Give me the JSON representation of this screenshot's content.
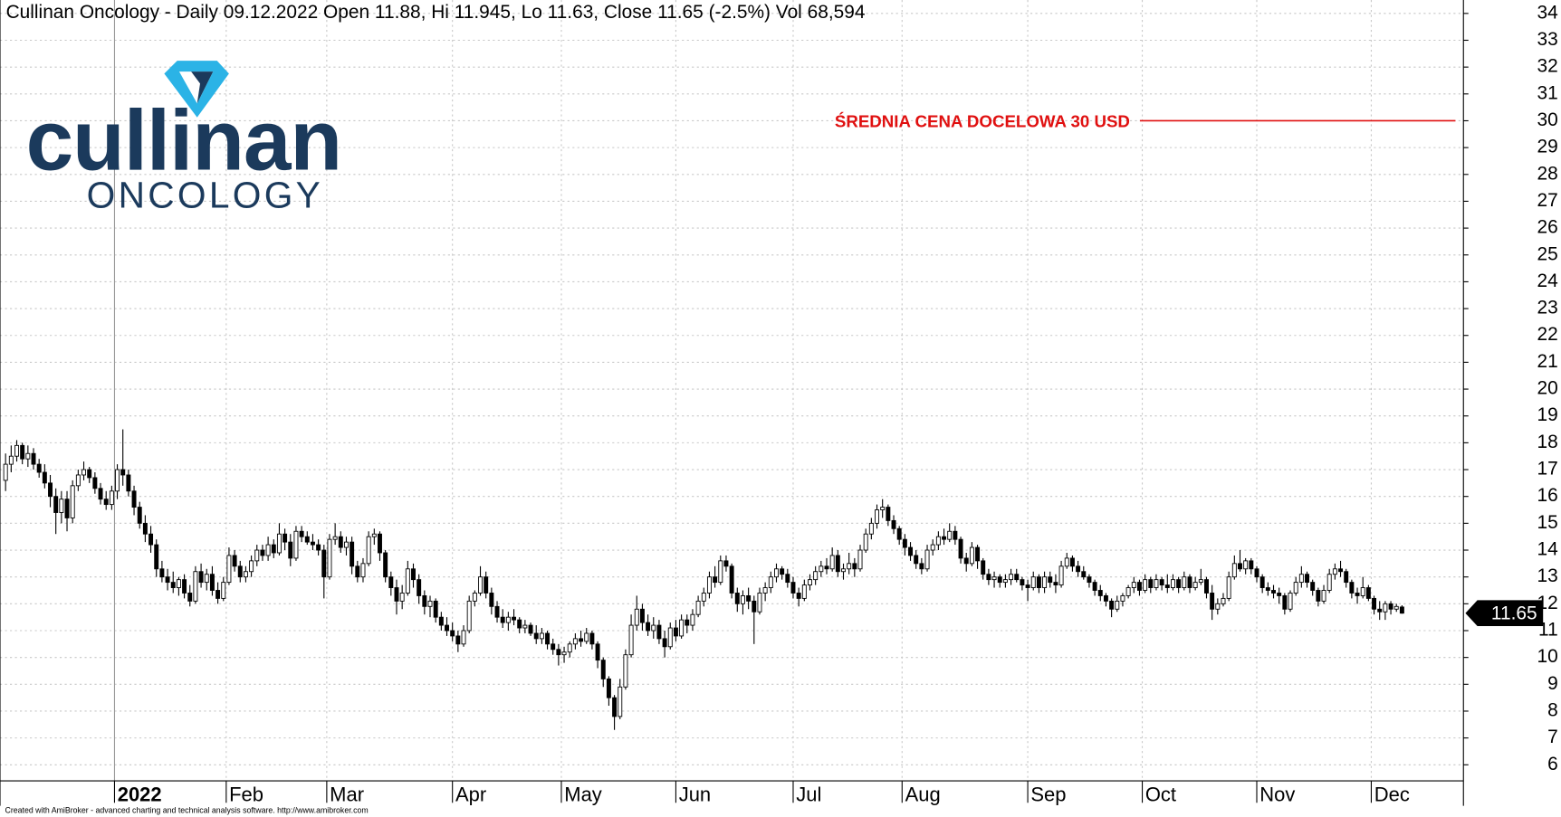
{
  "chart_data": {
    "type": "candlestick",
    "title": "Cullinan Oncology - Daily 09.12.2022 Open 11.88, Hi 11.945, Lo 11.63, Close 11.65 (-2.5%) Vol 68,594",
    "logo": {
      "name": "cullinan",
      "tagline": "ONCOLOGY"
    },
    "footer": "Created with AmiBroker - advanced charting and technical analysis software. http://www.amibroker.com",
    "target_line": {
      "value": 30,
      "label": "ŚREDNIA CENA DOCELOWA 30 USD",
      "color": "#e01010"
    },
    "last_price": 11.65,
    "ylim": [
      5.4,
      34.5
    ],
    "yticks": [
      6,
      7,
      8,
      9,
      10,
      11,
      12,
      13,
      14,
      15,
      16,
      17,
      18,
      19,
      20,
      21,
      22,
      23,
      24,
      25,
      26,
      27,
      28,
      29,
      30,
      31,
      32,
      33,
      34
    ],
    "xlim": [
      -1,
      261
    ],
    "xticks": [
      {
        "value": 19.5,
        "label": "2022"
      },
      {
        "value": 39.5,
        "label": "Feb"
      },
      {
        "value": 57.5,
        "label": "Mar"
      },
      {
        "value": 80,
        "label": "Apr"
      },
      {
        "value": 99.5,
        "label": "May"
      },
      {
        "value": 120,
        "label": "Jun"
      },
      {
        "value": 141,
        "label": "Jul"
      },
      {
        "value": 160.5,
        "label": "Aug"
      },
      {
        "value": 183,
        "label": "Sep"
      },
      {
        "value": 203.5,
        "label": "Oct"
      },
      {
        "value": 224,
        "label": "Nov"
      },
      {
        "value": 244.5,
        "label": "Dec"
      }
    ],
    "grid": true,
    "up_color": "#ffffff",
    "down_color": "#000000",
    "ohlc": [
      [
        16.6,
        17.6,
        16.2,
        17.2
      ],
      [
        17.2,
        17.9,
        16.9,
        17.5
      ],
      [
        17.5,
        18.1,
        17.3,
        17.9
      ],
      [
        17.9,
        18.0,
        17.2,
        17.4
      ],
      [
        17.4,
        17.9,
        17.1,
        17.6
      ],
      [
        17.6,
        17.8,
        17.0,
        17.2
      ],
      [
        17.2,
        17.4,
        16.7,
        16.9
      ],
      [
        16.9,
        17.2,
        16.3,
        16.5
      ],
      [
        16.5,
        16.8,
        15.6,
        16.0
      ],
      [
        16.0,
        16.3,
        14.6,
        15.4
      ],
      [
        15.4,
        16.2,
        15.0,
        15.9
      ],
      [
        15.9,
        16.2,
        14.7,
        15.2
      ],
      [
        15.2,
        16.6,
        15.0,
        16.4
      ],
      [
        16.4,
        17.0,
        16.2,
        16.8
      ],
      [
        16.8,
        17.3,
        16.6,
        17.0
      ],
      [
        17.0,
        17.1,
        16.5,
        16.7
      ],
      [
        16.7,
        16.9,
        16.1,
        16.3
      ],
      [
        16.3,
        16.5,
        15.7,
        15.9
      ],
      [
        15.9,
        16.2,
        15.5,
        15.7
      ],
      [
        15.7,
        16.4,
        15.5,
        16.2
      ],
      [
        16.2,
        17.2,
        15.9,
        17.0
      ],
      [
        17.0,
        18.5,
        16.4,
        16.8
      ],
      [
        16.8,
        17.0,
        16.0,
        16.2
      ],
      [
        16.2,
        16.4,
        15.3,
        15.6
      ],
      [
        15.6,
        15.8,
        14.8,
        15.0
      ],
      [
        15.0,
        15.3,
        14.3,
        14.6
      ],
      [
        14.6,
        14.9,
        13.9,
        14.2
      ],
      [
        14.2,
        14.4,
        13.0,
        13.3
      ],
      [
        13.3,
        13.6,
        12.8,
        13.0
      ],
      [
        13.0,
        13.3,
        12.5,
        12.8
      ],
      [
        12.8,
        13.2,
        12.4,
        12.6
      ],
      [
        12.6,
        13.0,
        12.3,
        12.9
      ],
      [
        12.9,
        13.1,
        12.2,
        12.4
      ],
      [
        12.4,
        12.7,
        11.9,
        12.1
      ],
      [
        12.1,
        13.4,
        12.0,
        13.2
      ],
      [
        13.2,
        13.5,
        12.6,
        12.8
      ],
      [
        12.8,
        13.3,
        12.5,
        13.1
      ],
      [
        13.1,
        13.4,
        12.3,
        12.5
      ],
      [
        12.5,
        12.8,
        12.0,
        12.2
      ],
      [
        12.2,
        13.0,
        12.1,
        12.8
      ],
      [
        12.8,
        14.1,
        12.7,
        13.8
      ],
      [
        13.8,
        14.0,
        13.2,
        13.4
      ],
      [
        13.4,
        13.6,
        12.8,
        13.0
      ],
      [
        13.0,
        13.4,
        12.8,
        13.2
      ],
      [
        13.2,
        13.8,
        13.0,
        13.6
      ],
      [
        13.6,
        14.2,
        13.4,
        14.0
      ],
      [
        14.0,
        14.2,
        13.6,
        13.8
      ],
      [
        13.8,
        14.5,
        13.6,
        14.2
      ],
      [
        14.2,
        14.4,
        13.7,
        13.9
      ],
      [
        13.9,
        15.0,
        13.8,
        14.6
      ],
      [
        14.6,
        14.8,
        14.0,
        14.3
      ],
      [
        14.3,
        14.6,
        13.4,
        13.7
      ],
      [
        13.7,
        14.9,
        13.6,
        14.7
      ],
      [
        14.7,
        14.9,
        14.3,
        14.5
      ],
      [
        14.5,
        14.7,
        14.2,
        14.3
      ],
      [
        14.3,
        14.6,
        14.0,
        14.2
      ],
      [
        14.2,
        14.4,
        13.8,
        14.0
      ],
      [
        14.0,
        14.2,
        12.2,
        13.0
      ],
      [
        13.0,
        14.6,
        12.9,
        14.4
      ],
      [
        14.4,
        15.0,
        14.2,
        14.5
      ],
      [
        14.5,
        14.7,
        13.9,
        14.1
      ],
      [
        14.1,
        14.5,
        13.8,
        14.3
      ],
      [
        14.3,
        14.5,
        13.1,
        13.4
      ],
      [
        13.4,
        13.6,
        12.8,
        13.0
      ],
      [
        13.0,
        13.7,
        12.8,
        13.5
      ],
      [
        13.5,
        14.7,
        13.4,
        14.5
      ],
      [
        14.5,
        14.8,
        14.2,
        14.6
      ],
      [
        14.6,
        14.7,
        13.6,
        13.9
      ],
      [
        13.9,
        14.0,
        12.8,
        13.0
      ],
      [
        13.0,
        13.2,
        12.3,
        12.6
      ],
      [
        12.6,
        12.9,
        11.6,
        12.1
      ],
      [
        12.1,
        12.7,
        11.8,
        12.4
      ],
      [
        12.4,
        13.6,
        12.3,
        13.3
      ],
      [
        13.3,
        13.5,
        12.6,
        12.9
      ],
      [
        12.9,
        13.1,
        12.0,
        12.3
      ],
      [
        12.3,
        12.5,
        11.6,
        11.9
      ],
      [
        11.9,
        12.3,
        11.5,
        12.1
      ],
      [
        12.1,
        12.2,
        11.3,
        11.5
      ],
      [
        11.5,
        11.7,
        11.0,
        11.2
      ],
      [
        11.2,
        11.5,
        10.8,
        11.0
      ],
      [
        11.0,
        11.3,
        10.6,
        10.8
      ],
      [
        10.8,
        11.0,
        10.2,
        10.5
      ],
      [
        10.5,
        11.2,
        10.4,
        11.0
      ],
      [
        11.0,
        12.3,
        10.9,
        12.1
      ],
      [
        12.1,
        12.5,
        11.9,
        12.4
      ],
      [
        12.4,
        13.4,
        12.3,
        13.0
      ],
      [
        13.0,
        13.2,
        12.2,
        12.4
      ],
      [
        12.4,
        12.6,
        11.6,
        11.9
      ],
      [
        11.9,
        12.1,
        11.3,
        11.5
      ],
      [
        11.5,
        11.8,
        11.1,
        11.3
      ],
      [
        11.3,
        11.7,
        11.0,
        11.5
      ],
      [
        11.5,
        11.8,
        11.2,
        11.4
      ],
      [
        11.4,
        11.5,
        10.9,
        11.1
      ],
      [
        11.1,
        11.4,
        10.9,
        11.2
      ],
      [
        11.2,
        11.3,
        10.8,
        10.9
      ],
      [
        10.9,
        11.2,
        10.5,
        10.7
      ],
      [
        10.7,
        11.1,
        10.5,
        10.9
      ],
      [
        10.9,
        11.0,
        10.3,
        10.5
      ],
      [
        10.5,
        10.7,
        10.1,
        10.3
      ],
      [
        10.3,
        10.5,
        9.7,
        10.1
      ],
      [
        10.1,
        10.4,
        9.8,
        10.2
      ],
      [
        10.2,
        10.6,
        10.0,
        10.5
      ],
      [
        10.5,
        10.9,
        10.3,
        10.7
      ],
      [
        10.7,
        11.0,
        10.4,
        10.6
      ],
      [
        10.6,
        11.1,
        10.5,
        10.9
      ],
      [
        10.9,
        11.0,
        10.3,
        10.5
      ],
      [
        10.5,
        10.6,
        9.6,
        9.9
      ],
      [
        9.9,
        10.0,
        8.9,
        9.2
      ],
      [
        9.2,
        9.3,
        8.2,
        8.5
      ],
      [
        8.5,
        8.6,
        7.3,
        7.8
      ],
      [
        7.8,
        9.2,
        7.7,
        8.9
      ],
      [
        8.9,
        10.3,
        8.8,
        10.1
      ],
      [
        10.1,
        11.6,
        10.0,
        11.2
      ],
      [
        11.2,
        12.3,
        11.0,
        11.8
      ],
      [
        11.8,
        12.0,
        11.0,
        11.3
      ],
      [
        11.3,
        11.6,
        10.8,
        11.0
      ],
      [
        11.0,
        11.5,
        10.7,
        11.2
      ],
      [
        11.2,
        11.4,
        10.5,
        10.7
      ],
      [
        10.7,
        11.0,
        10.0,
        10.4
      ],
      [
        10.4,
        11.3,
        10.3,
        11.1
      ],
      [
        11.1,
        11.4,
        10.6,
        10.8
      ],
      [
        10.8,
        11.6,
        10.7,
        11.4
      ],
      [
        11.4,
        11.6,
        10.9,
        11.2
      ],
      [
        11.2,
        11.8,
        11.0,
        11.6
      ],
      [
        11.6,
        12.3,
        11.5,
        12.1
      ],
      [
        12.1,
        12.6,
        11.9,
        12.4
      ],
      [
        12.4,
        13.2,
        12.2,
        13.0
      ],
      [
        13.0,
        13.4,
        12.6,
        12.8
      ],
      [
        12.8,
        13.8,
        12.7,
        13.6
      ],
      [
        13.6,
        13.8,
        13.2,
        13.4
      ],
      [
        13.4,
        13.5,
        12.2,
        12.4
      ],
      [
        12.4,
        12.6,
        11.7,
        12.0
      ],
      [
        12.0,
        12.5,
        11.6,
        12.3
      ],
      [
        12.3,
        12.6,
        11.8,
        12.1
      ],
      [
        12.1,
        12.3,
        10.5,
        11.7
      ],
      [
        11.7,
        12.6,
        11.6,
        12.4
      ],
      [
        12.4,
        12.8,
        12.1,
        12.6
      ],
      [
        12.6,
        13.2,
        12.4,
        13.0
      ],
      [
        13.0,
        13.5,
        12.8,
        13.3
      ],
      [
        13.3,
        13.4,
        12.9,
        13.1
      ],
      [
        13.1,
        13.3,
        12.6,
        12.8
      ],
      [
        12.8,
        13.0,
        12.2,
        12.4
      ],
      [
        12.4,
        12.6,
        11.9,
        12.2
      ],
      [
        12.2,
        12.9,
        12.1,
        12.7
      ],
      [
        12.7,
        13.1,
        12.5,
        12.9
      ],
      [
        12.9,
        13.4,
        12.7,
        13.2
      ],
      [
        13.2,
        13.6,
        13.0,
        13.4
      ],
      [
        13.4,
        13.7,
        13.1,
        13.3
      ],
      [
        13.3,
        14.1,
        13.2,
        13.8
      ],
      [
        13.8,
        14.0,
        13.0,
        13.2
      ],
      [
        13.2,
        13.5,
        12.9,
        13.3
      ],
      [
        13.3,
        13.9,
        13.1,
        13.5
      ],
      [
        13.5,
        13.7,
        13.0,
        13.3
      ],
      [
        13.3,
        14.2,
        13.2,
        14.0
      ],
      [
        14.0,
        14.8,
        13.9,
        14.6
      ],
      [
        14.6,
        15.2,
        14.4,
        15.0
      ],
      [
        15.0,
        15.7,
        14.8,
        15.5
      ],
      [
        15.5,
        15.9,
        15.2,
        15.6
      ],
      [
        15.6,
        15.7,
        14.9,
        15.1
      ],
      [
        15.1,
        15.3,
        14.6,
        14.8
      ],
      [
        14.8,
        14.9,
        14.2,
        14.4
      ],
      [
        14.4,
        14.6,
        13.8,
        14.1
      ],
      [
        14.1,
        14.3,
        13.6,
        13.8
      ],
      [
        13.8,
        14.0,
        13.3,
        13.5
      ],
      [
        13.5,
        13.7,
        13.1,
        13.3
      ],
      [
        13.3,
        14.2,
        13.2,
        14.0
      ],
      [
        14.0,
        14.4,
        13.8,
        14.2
      ],
      [
        14.2,
        14.7,
        14.0,
        14.5
      ],
      [
        14.5,
        14.8,
        14.2,
        14.4
      ],
      [
        14.4,
        15.0,
        14.3,
        14.7
      ],
      [
        14.7,
        14.9,
        14.2,
        14.4
      ],
      [
        14.4,
        14.5,
        13.5,
        13.7
      ],
      [
        13.7,
        13.9,
        13.2,
        13.5
      ],
      [
        13.5,
        14.3,
        13.4,
        14.1
      ],
      [
        14.1,
        14.2,
        13.3,
        13.6
      ],
      [
        13.6,
        13.7,
        12.9,
        13.1
      ],
      [
        13.1,
        13.3,
        12.7,
        12.9
      ],
      [
        12.9,
        13.2,
        12.6,
        13.0
      ],
      [
        13.0,
        13.1,
        12.6,
        12.8
      ],
      [
        12.8,
        13.1,
        12.6,
        12.9
      ],
      [
        12.9,
        13.3,
        12.7,
        13.1
      ],
      [
        13.1,
        13.3,
        12.8,
        12.9
      ],
      [
        12.9,
        13.0,
        12.5,
        12.7
      ],
      [
        12.7,
        12.9,
        12.1,
        12.6
      ],
      [
        12.6,
        13.2,
        12.5,
        13.0
      ],
      [
        13.0,
        13.1,
        12.4,
        12.6
      ],
      [
        12.6,
        13.2,
        12.4,
        13.0
      ],
      [
        13.0,
        13.2,
        12.6,
        12.8
      ],
      [
        12.8,
        13.1,
        12.4,
        12.7
      ],
      [
        12.7,
        13.6,
        12.6,
        13.4
      ],
      [
        13.4,
        13.9,
        13.3,
        13.7
      ],
      [
        13.7,
        13.8,
        13.2,
        13.4
      ],
      [
        13.4,
        13.6,
        13.0,
        13.2
      ],
      [
        13.2,
        13.4,
        12.9,
        13.0
      ],
      [
        13.0,
        13.1,
        12.6,
        12.8
      ],
      [
        12.8,
        12.9,
        12.3,
        12.5
      ],
      [
        12.5,
        12.7,
        12.1,
        12.3
      ],
      [
        12.3,
        12.4,
        11.9,
        12.1
      ],
      [
        12.1,
        12.2,
        11.5,
        11.8
      ],
      [
        11.8,
        12.3,
        11.7,
        12.1
      ],
      [
        12.1,
        12.4,
        11.9,
        12.3
      ],
      [
        12.3,
        12.7,
        12.2,
        12.6
      ],
      [
        12.6,
        13.0,
        12.4,
        12.8
      ],
      [
        12.8,
        12.9,
        12.3,
        12.5
      ],
      [
        12.5,
        13.1,
        12.4,
        12.9
      ],
      [
        12.9,
        13.0,
        12.4,
        12.6
      ],
      [
        12.6,
        13.1,
        12.5,
        12.9
      ],
      [
        12.9,
        13.0,
        12.5,
        12.7
      ],
      [
        12.7,
        13.1,
        12.4,
        12.6
      ],
      [
        12.6,
        13.1,
        12.5,
        12.9
      ],
      [
        12.9,
        13.0,
        12.4,
        12.6
      ],
      [
        12.6,
        13.2,
        12.5,
        13.0
      ],
      [
        13.0,
        13.1,
        12.4,
        12.6
      ],
      [
        12.6,
        13.0,
        12.5,
        12.8
      ],
      [
        12.8,
        13.3,
        12.7,
        12.9
      ],
      [
        12.9,
        13.0,
        12.2,
        12.4
      ],
      [
        12.4,
        12.7,
        11.4,
        11.8
      ],
      [
        11.8,
        12.2,
        11.6,
        12.0
      ],
      [
        12.0,
        12.4,
        11.9,
        12.2
      ],
      [
        12.2,
        13.2,
        12.1,
        13.0
      ],
      [
        13.0,
        13.8,
        12.9,
        13.5
      ],
      [
        13.5,
        14.0,
        13.2,
        13.3
      ],
      [
        13.3,
        13.7,
        13.1,
        13.6
      ],
      [
        13.6,
        13.7,
        13.1,
        13.3
      ],
      [
        13.3,
        13.4,
        12.8,
        13.0
      ],
      [
        13.0,
        13.1,
        12.4,
        12.6
      ],
      [
        12.6,
        12.8,
        12.3,
        12.5
      ],
      [
        12.5,
        12.7,
        12.2,
        12.4
      ],
      [
        12.4,
        12.6,
        12.0,
        12.3
      ],
      [
        12.3,
        12.4,
        11.6,
        11.8
      ],
      [
        11.8,
        12.5,
        11.7,
        12.4
      ],
      [
        12.4,
        13.0,
        12.3,
        12.8
      ],
      [
        12.8,
        13.4,
        12.6,
        13.1
      ],
      [
        13.1,
        13.2,
        12.6,
        12.8
      ],
      [
        12.8,
        12.9,
        12.3,
        12.5
      ],
      [
        12.5,
        12.6,
        11.9,
        12.1
      ],
      [
        12.1,
        12.7,
        12.0,
        12.5
      ],
      [
        12.5,
        13.3,
        12.4,
        13.1
      ],
      [
        13.1,
        13.5,
        12.9,
        13.3
      ],
      [
        13.3,
        13.6,
        13.0,
        13.2
      ],
      [
        13.2,
        13.3,
        12.6,
        12.8
      ],
      [
        12.8,
        12.9,
        12.2,
        12.4
      ],
      [
        12.4,
        12.6,
        12.0,
        12.3
      ],
      [
        12.3,
        13.0,
        12.2,
        12.6
      ],
      [
        12.6,
        12.7,
        12.1,
        12.2
      ],
      [
        12.2,
        12.3,
        11.6,
        11.8
      ],
      [
        11.8,
        12.1,
        11.4,
        11.7
      ],
      [
        11.7,
        12.1,
        11.4,
        12.0
      ],
      [
        12.0,
        12.1,
        11.6,
        11.8
      ],
      [
        11.8,
        12.0,
        11.7,
        11.9
      ],
      [
        11.88,
        11.945,
        11.63,
        11.65
      ]
    ]
  }
}
